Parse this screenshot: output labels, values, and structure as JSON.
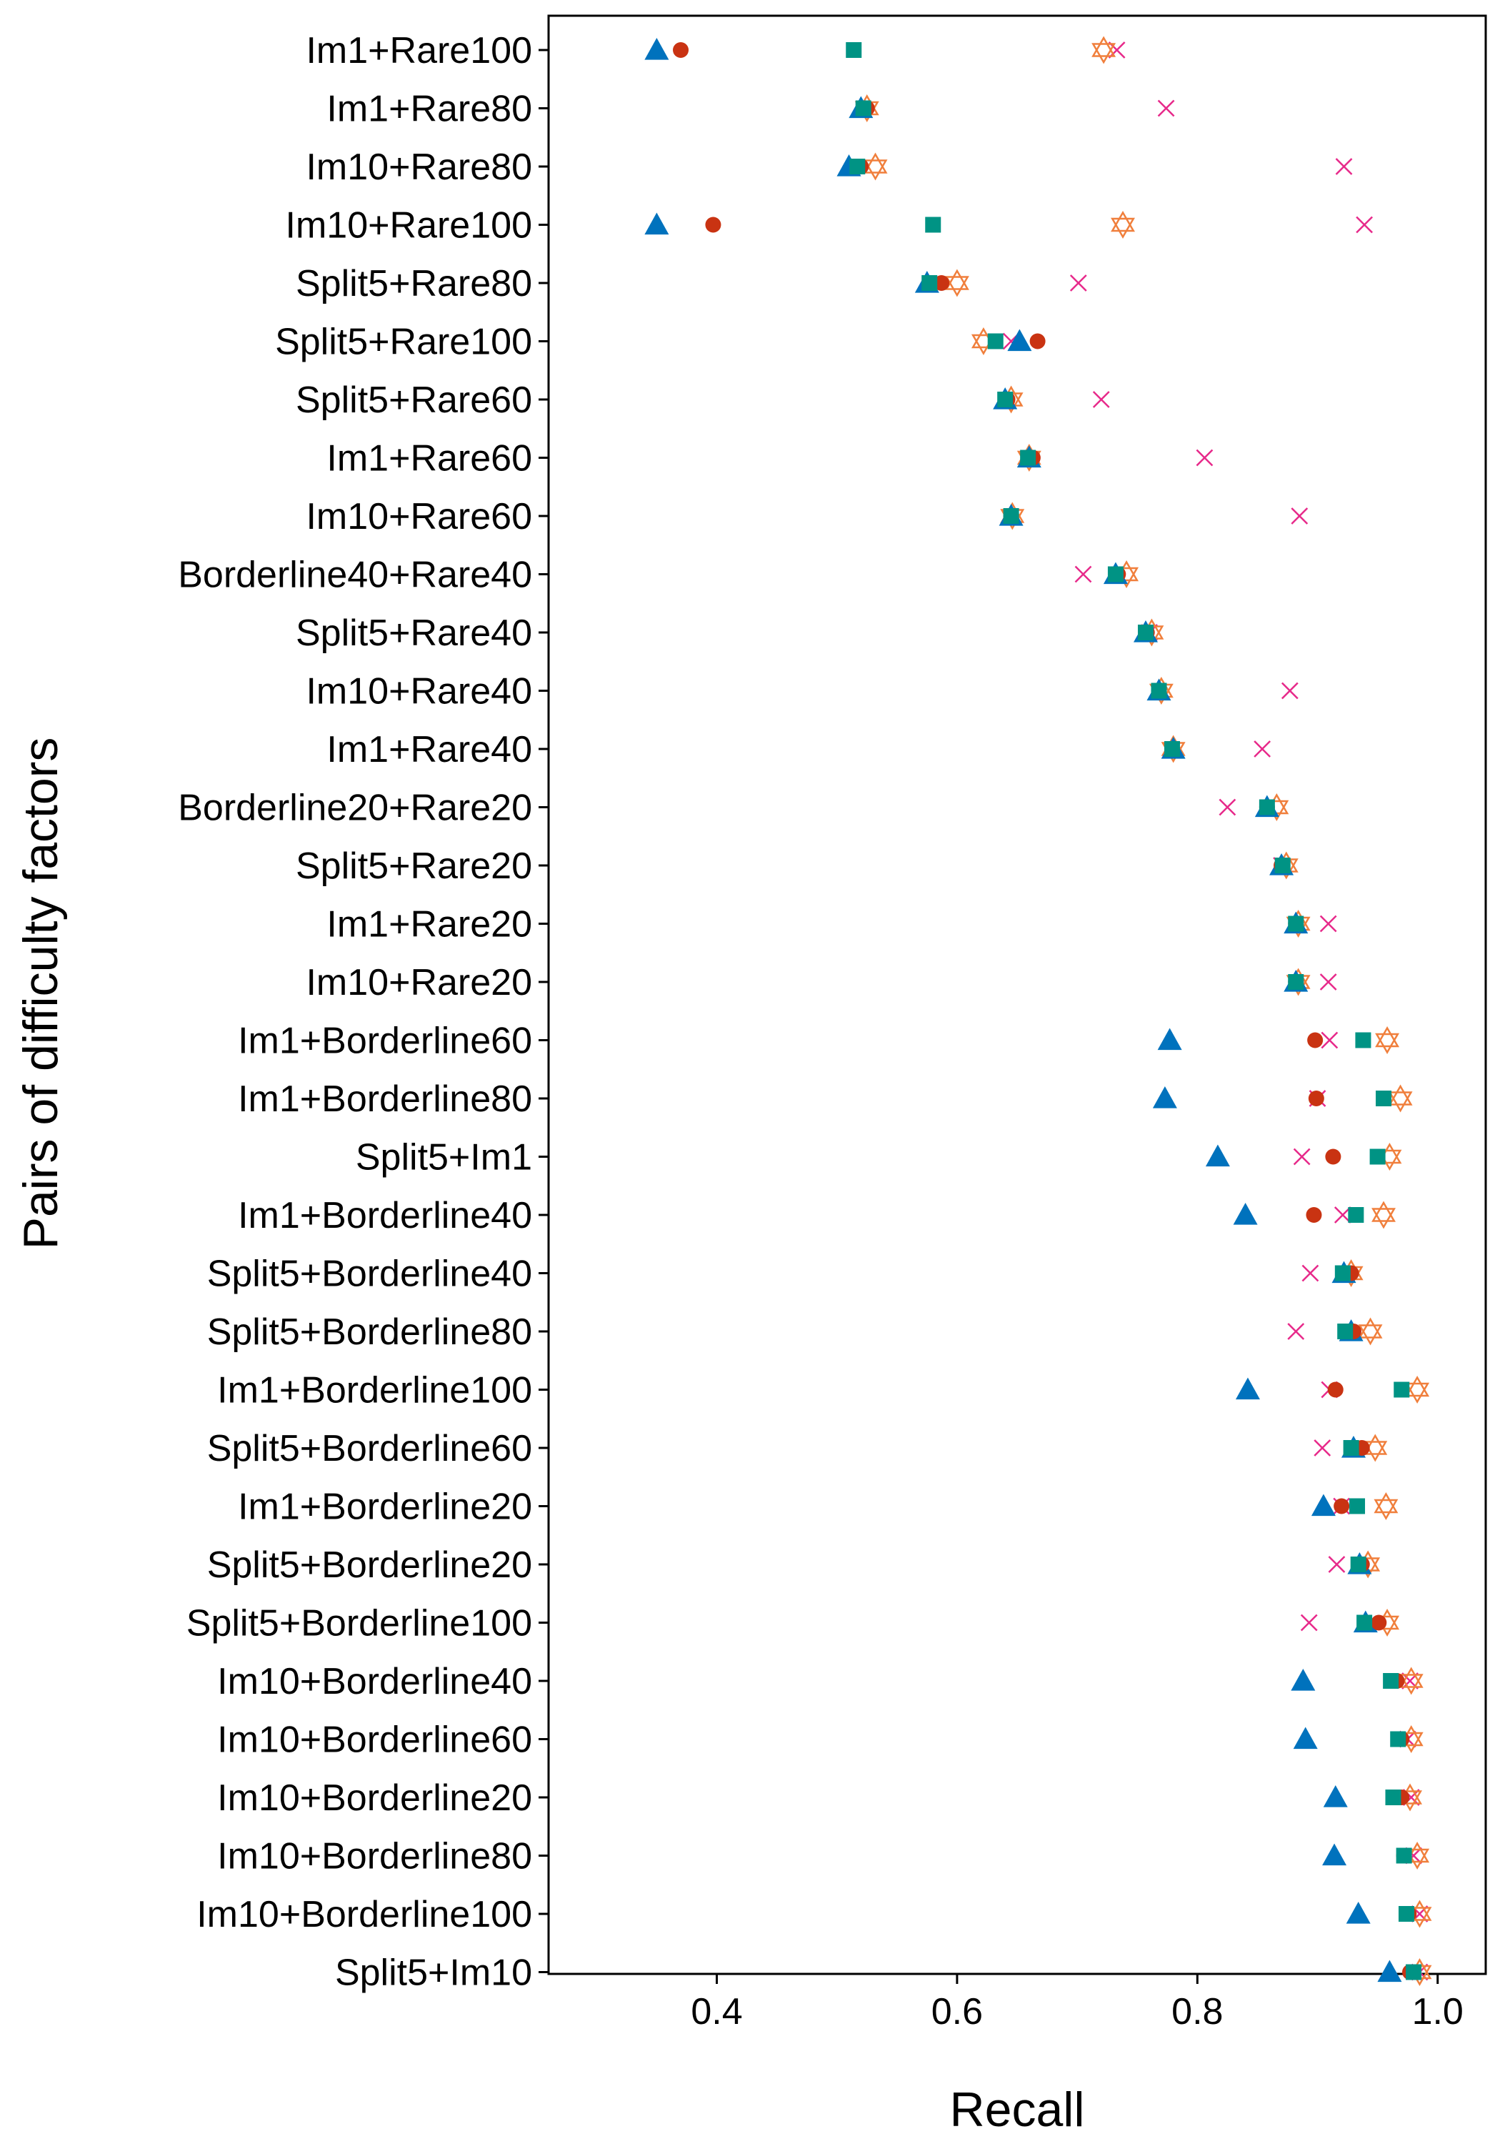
{
  "chart_data": {
    "type": "scatter",
    "title": "",
    "xlabel": "Recall",
    "ylabel": "Pairs of difficulty factors",
    "xlim": [
      0.26,
      1.04
    ],
    "xticks": [
      0.4,
      0.6,
      0.8,
      1.0
    ],
    "xtick_labels": [
      "0.4",
      "0.6",
      "0.8",
      "1.0"
    ],
    "grid": false,
    "legend": "none",
    "categories": [
      "Im1+Rare100",
      "Im1+Rare80",
      "Im10+Rare80",
      "Im10+Rare100",
      "Split5+Rare80",
      "Split5+Rare100",
      "Split5+Rare60",
      "Im1+Rare60",
      "Im10+Rare60",
      "Borderline40+Rare40",
      "Split5+Rare40",
      "Im10+Rare40",
      "Im1+Rare40",
      "Borderline20+Rare20",
      "Split5+Rare20",
      "Im1+Rare20",
      "Im10+Rare20",
      "Im1+Borderline60",
      "Im1+Borderline80",
      "Split5+Im1",
      "Im1+Borderline40",
      "Split5+Borderline40",
      "Split5+Borderline80",
      "Im1+Borderline100",
      "Split5+Borderline60",
      "Im1+Borderline20",
      "Split5+Borderline20",
      "Split5+Borderline100",
      "Im10+Borderline40",
      "Im10+Borderline60",
      "Im10+Borderline20",
      "Im10+Borderline80",
      "Im10+Borderline100",
      "Split5+Im10"
    ],
    "series": [
      {
        "marker": "triangle",
        "color": "#0072BD",
        "values": [
          0.35,
          0.52,
          0.51,
          0.35,
          0.575,
          0.652,
          0.64,
          0.66,
          0.645,
          0.732,
          0.757,
          0.768,
          0.78,
          0.858,
          0.87,
          0.882,
          0.882,
          0.777,
          0.773,
          0.817,
          0.84,
          0.922,
          0.928,
          0.842,
          0.93,
          0.905,
          0.935,
          0.94,
          0.888,
          0.89,
          0.915,
          0.914,
          0.934,
          0.96
        ]
      },
      {
        "marker": "circle",
        "color": "#C93312",
        "values": [
          0.37,
          0.525,
          0.52,
          0.397,
          0.587,
          0.667,
          0.642,
          0.663,
          0.645,
          0.734,
          0.758,
          0.768,
          0.779,
          0.858,
          0.87,
          0.882,
          0.882,
          0.898,
          0.899,
          0.913,
          0.897,
          0.928,
          0.93,
          0.915,
          0.937,
          0.92,
          0.937,
          0.951,
          0.966,
          0.97,
          0.97,
          0.972,
          0.976,
          0.977
        ]
      },
      {
        "marker": "square",
        "color": "#009384",
        "values": [
          0.514,
          0.522,
          0.517,
          0.58,
          0.577,
          0.632,
          0.64,
          0.659,
          0.645,
          0.732,
          0.757,
          0.768,
          0.779,
          0.858,
          0.871,
          0.882,
          0.882,
          0.938,
          0.955,
          0.95,
          0.932,
          0.921,
          0.923,
          0.97,
          0.928,
          0.933,
          0.934,
          0.939,
          0.961,
          0.967,
          0.963,
          0.972,
          0.974,
          0.98
        ]
      },
      {
        "marker": "hexagram",
        "color": "#F07F3C",
        "values": [
          0.722,
          0.525,
          0.532,
          0.738,
          0.6,
          0.622,
          0.645,
          0.66,
          0.646,
          0.741,
          0.762,
          0.77,
          0.78,
          0.866,
          0.874,
          0.884,
          0.884,
          0.958,
          0.969,
          0.96,
          0.955,
          0.928,
          0.944,
          0.983,
          0.948,
          0.957,
          0.942,
          0.958,
          0.978,
          0.978,
          0.977,
          0.983,
          0.985,
          0.985
        ]
      },
      {
        "marker": "x",
        "color": "#E7298A",
        "values": [
          0.733,
          0.774,
          0.922,
          0.939,
          0.701,
          0.645,
          0.72,
          0.806,
          0.885,
          0.705,
          0.76,
          0.877,
          0.854,
          0.825,
          0.87,
          0.909,
          0.909,
          0.91,
          0.9,
          0.887,
          0.921,
          0.894,
          0.882,
          0.91,
          0.904,
          0.92,
          0.916,
          0.893,
          0.977,
          0.975,
          0.978,
          0.98,
          0.985,
          0.985
        ]
      }
    ]
  }
}
